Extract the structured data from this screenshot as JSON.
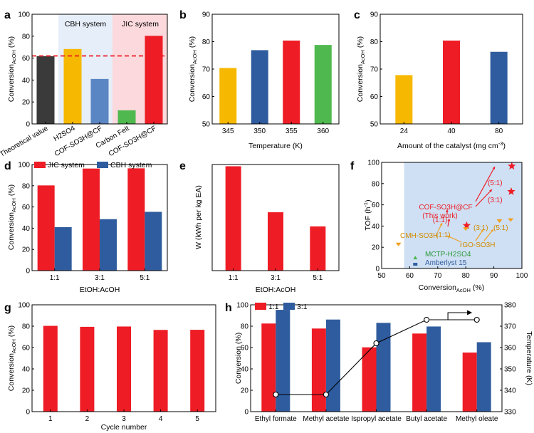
{
  "colors": {
    "red": "#ee1c25",
    "blue": "#2f5c9e",
    "yellow": "#f6b800",
    "green": "#4fb84f",
    "dark": "#3a3a3a",
    "lightblue": "#5b86c4",
    "orange": "#f0a020",
    "cbh_bg": "#e6eef9",
    "jic_bg": "#fbd9dc",
    "scatter_bg": "#cfe0f4"
  },
  "chart_data": [
    {
      "panel": "a",
      "type": "bar",
      "categories": [
        "Theoretical value",
        "H2SO4",
        "COF-SO3H@CF",
        "Carbon Felt",
        "COF-SO3H@CF"
      ],
      "values": [
        61.8,
        68.3,
        41.0,
        12.4,
        80.3
      ],
      "ylabel": "Conversion_AcOH (%)",
      "ylim": [
        0,
        100
      ],
      "yticks": [
        0,
        20,
        40,
        60,
        80,
        100
      ],
      "reference_line": 62,
      "regions": [
        "CBH system",
        "JIC system"
      ]
    },
    {
      "panel": "b",
      "type": "bar",
      "categories": [
        "345",
        "350",
        "355",
        "360"
      ],
      "values": [
        70.4,
        76.9,
        80.4,
        78.8
      ],
      "xlabel": "Temperature (K)",
      "ylabel": "Conversion_AcOH (%)",
      "ylim": [
        50,
        90
      ],
      "yticks": [
        50,
        60,
        70,
        80,
        90
      ]
    },
    {
      "panel": "c",
      "type": "bar",
      "categories": [
        "24",
        "40",
        "80"
      ],
      "values": [
        67.8,
        80.4,
        76.3
      ],
      "xlabel": "Amount of the catalyst (mg cm^-3)",
      "ylabel": "Conversion_AcOH (%)",
      "ylim": [
        50,
        90
      ],
      "yticks": [
        50,
        60,
        70,
        80,
        90
      ]
    },
    {
      "panel": "d",
      "type": "bar",
      "categories": [
        "1:1",
        "3:1",
        "5:1"
      ],
      "series": [
        {
          "name": "JIC system",
          "values": [
            80.3,
            96.2,
            96.4
          ]
        },
        {
          "name": "CBH system",
          "values": [
            41.0,
            48.5,
            55.4
          ]
        }
      ],
      "xlabel": "EtOH:AcOH",
      "ylabel": "Conversion_AcOH (%)",
      "ylim": [
        0,
        100
      ],
      "yticks": [
        0,
        20,
        40,
        60,
        80,
        100
      ]
    },
    {
      "panel": "e",
      "type": "bar",
      "categories": [
        "1:1",
        "3:1",
        "5:1"
      ],
      "values": [
        2.95,
        1.65,
        1.25
      ],
      "xlabel": "EtOH:AcOH",
      "ylabel": "W (kWh per kg EA)"
    },
    {
      "panel": "f",
      "type": "scatter",
      "xlabel": "Conversion_AcOH (%)",
      "ylabel": "TOF (h^-1)",
      "xlim": [
        50,
        100
      ],
      "ylim": [
        0,
        100
      ],
      "xticks": [
        50,
        60,
        70,
        80,
        90,
        100
      ],
      "yticks": [
        0,
        20,
        40,
        60,
        80,
        100
      ],
      "points": [
        {
          "series": "COF-SO3H@CF",
          "x": 80.3,
          "y": 40.5,
          "label": "(1:1)"
        },
        {
          "series": "COF-SO3H@CF",
          "x": 96.2,
          "y": 72.5,
          "label": "(3:1)"
        },
        {
          "series": "COF-SO3H@CF",
          "x": 96.4,
          "y": 96.5,
          "label": "(5:1)"
        },
        {
          "series": "rGO-SO3H",
          "x": 80.0,
          "y": 37.5,
          "label": "(1:1)"
        },
        {
          "series": "rGO-SO3H",
          "x": 92.0,
          "y": 45.0,
          "label": "(3:1)"
        },
        {
          "series": "rGO-SO3H",
          "x": 96.0,
          "y": 46.0,
          "label": "(5:1)"
        },
        {
          "series": "CMH-SO3H",
          "x": 56.0,
          "y": 23.0,
          "label": ""
        },
        {
          "series": "MCTP-H2SO4",
          "x": 62.0,
          "y": 10.0,
          "label": ""
        },
        {
          "series": "Amberlyst 15",
          "x": 62.0,
          "y": 4.0,
          "label": ""
        }
      ],
      "annotations": [
        "COF-SO3H@CF",
        "(This work)",
        "CMH-SO3H",
        "rGO-SO3H",
        "MCTP-H2SO4",
        "Amberlyst 15"
      ]
    },
    {
      "panel": "g",
      "type": "bar",
      "categories": [
        "1",
        "2",
        "3",
        "4",
        "5"
      ],
      "values": [
        80.3,
        79.4,
        79.7,
        76.5,
        76.6
      ],
      "xlabel": "Cycle number",
      "ylabel": "Conversion_AcOH (%)",
      "ylim": [
        0,
        100
      ],
      "yticks": [
        0,
        20,
        40,
        60,
        80,
        100
      ]
    },
    {
      "panel": "h",
      "type": "bar",
      "categories": [
        "Ethyl formate",
        "Methyl acetate",
        "Ispropyl acetate",
        "Butyl acetate",
        "Methyl oleate"
      ],
      "series": [
        {
          "name": "1:1",
          "values": [
            82.5,
            77.8,
            60.2,
            73.1,
            55.3
          ]
        },
        {
          "name": "3:1",
          "values": [
            95.3,
            86.2,
            83.1,
            79.7,
            65.0
          ]
        }
      ],
      "temperature_line": [
        338,
        338,
        362,
        373,
        373
      ],
      "ylabel": "Conversion (%)",
      "y2label": "Temperature (K)",
      "ylim": [
        0,
        100
      ],
      "y2lim": [
        330,
        380
      ],
      "yticks": [
        0,
        20,
        40,
        60,
        80,
        100
      ],
      "y2ticks": [
        330,
        340,
        350,
        360,
        370,
        380
      ]
    }
  ],
  "labels": {
    "a": {
      "panel": "a",
      "cbh": "CBH system",
      "jic": "JIC system",
      "ylabel_main": "Conversion",
      "ylabel_sub": "AcOH",
      "ylabel_tail": " (%)",
      "ticklabels": [
        "Theoretical value",
        "H2SO4",
        "COF-SO3H@CF",
        "Carbon Felt",
        "COF-SO3H@CF"
      ]
    },
    "b": {
      "panel": "b",
      "xlabel": "Temperature (K)",
      "ylabel_main": "Conversion",
      "ylabel_sub": "AcOH",
      "ylabel_tail": " (%)"
    },
    "c": {
      "panel": "c",
      "xlabel_main": "Amount of the catalyst (mg cm",
      "xlabel_sup": "-3",
      "xlabel_tail": ")",
      "ylabel_main": "Conversion",
      "ylabel_sub": "AcOH",
      "ylabel_tail": " (%)"
    },
    "d": {
      "panel": "d",
      "xlabel": "EtOH:AcOH",
      "legend": [
        "JIC system",
        "CBH system"
      ],
      "ylabel_main": "Conversion",
      "ylabel_sub": "AcOH",
      "ylabel_tail": " (%)"
    },
    "e": {
      "panel": "e",
      "xlabel": "EtOH:AcOH",
      "ylabel": "W (kWh per kg EA)"
    },
    "f": {
      "panel": "f",
      "xlabel_main": "Conversion",
      "xlabel_sub": "AcOH",
      "xlabel_tail": " (%)",
      "ylabel_main": "TOF (h",
      "ylabel_sup": "-1",
      "ylabel_tail": ")",
      "cof": "COF-SO3H@CF",
      "thiswork": "(This work)",
      "r11": "(1:1)",
      "r31": "(3:1)",
      "r51": "(5:1)",
      "g11": "(1:1)",
      "g31": "(3:1)",
      "g51": "(5:1)",
      "rgo": "rGO-SO3H",
      "cmh": "CMH-SO3H",
      "mctp": "MCTP-H2SO4",
      "amb": "Amberlyst 15"
    },
    "g": {
      "panel": "g",
      "xlabel": "Cycle number",
      "ylabel_main": "Conversion",
      "ylabel_sub": "AcOH",
      "ylabel_tail": " (%)"
    },
    "h": {
      "panel": "h",
      "ylabel": "Conversion (%)",
      "y2label": "Temperature (K)",
      "legend": [
        "1:1",
        "3:1"
      ]
    }
  }
}
